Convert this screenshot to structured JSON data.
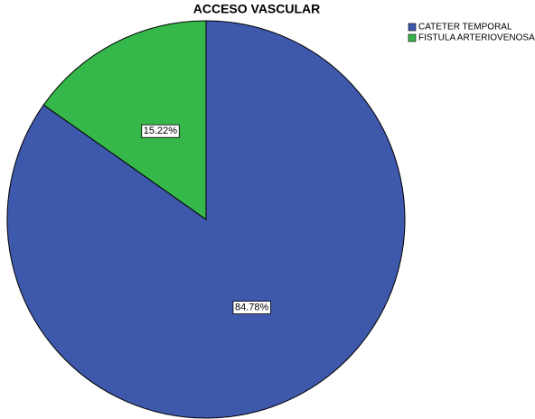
{
  "chart_data": {
    "type": "pie",
    "title": "ACCESO VASCULAR",
    "categories": [
      "CATETER TEMPORAL",
      "FISTULA ARTERIOVENOSA"
    ],
    "values": [
      84.78,
      15.22
    ],
    "value_labels": [
      "84.78%",
      "15.22%"
    ],
    "colors": [
      "#3e58ac",
      "#36b749"
    ],
    "legend": "top-right"
  }
}
